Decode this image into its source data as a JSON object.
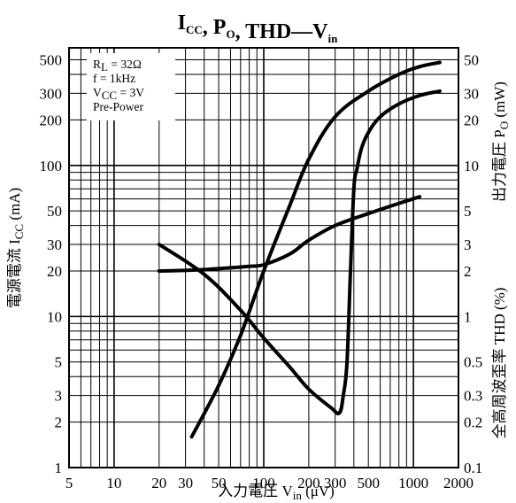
{
  "chart_data": {
    "type": "line",
    "title_parts": [
      {
        "text": "I",
        "sub": "CC"
      },
      {
        "text": ", P",
        "sub": "O"
      },
      {
        "text": ", THD—V",
        "sub": "in"
      }
    ],
    "xlabel": {
      "prefix": "入力電圧",
      "symbol": "V",
      "sub": "in",
      "unit": "(μV)"
    },
    "ylabel_left": {
      "prefix": "電源電流",
      "symbol": "I",
      "sub": "CC",
      "unit": "(mA)"
    },
    "ylabel_right_po": {
      "prefix": "出力電圧",
      "symbol": "P",
      "sub": "O",
      "unit": "(mW)"
    },
    "ylabel_right_thd": {
      "prefix": "全高周波歪率",
      "symbol": "THD",
      "unit": "(%)"
    },
    "conditions": [
      "R_L = 32Ω",
      "f = 1kHz",
      "V_CC = 3V",
      "Pre-Power"
    ],
    "x_scale": "log",
    "xlim": [
      5,
      2000
    ],
    "x_ticks": [
      "5",
      "10",
      "20",
      "30",
      "50",
      "100",
      "200",
      "300",
      "500",
      "1000",
      "2000"
    ],
    "y_left_scale": "log",
    "ylim_left": [
      1,
      600
    ],
    "y_left_ticks": [
      "1",
      "2",
      "3",
      "5",
      "10",
      "20",
      "30",
      "50",
      "100",
      "200",
      "300",
      "500"
    ],
    "y_right_ticks": [
      "0.1",
      "0.2",
      "0.3",
      "0.5",
      "1",
      "2",
      "3",
      "5",
      "10",
      "20",
      "30",
      "50"
    ],
    "grid": true,
    "series": [
      {
        "name": "ICC",
        "axis": "left",
        "x": [
          20,
          35,
          60,
          80,
          100,
          150,
          200,
          300,
          500,
          800,
          1100
        ],
        "y": [
          20,
          20.3,
          21,
          21.5,
          22,
          26,
          32,
          40,
          48,
          56,
          62
        ]
      },
      {
        "name": "PO",
        "axis": "left",
        "x": [
          33,
          50,
          70,
          100,
          150,
          200,
          300,
          500,
          800,
          1100,
          1500
        ],
        "y": [
          1.6,
          3.5,
          7.5,
          20,
          55,
          110,
          210,
          310,
          400,
          450,
          480
        ]
      },
      {
        "name": "THD",
        "axis": "left",
        "x": [
          20,
          40,
          70,
          100,
          150,
          200,
          280,
          320,
          340,
          360,
          380,
          400,
          420,
          450,
          500,
          600,
          800,
          1100,
          1500
        ],
        "y": [
          30,
          19,
          11,
          7.2,
          4.6,
          3.3,
          2.5,
          2.3,
          3,
          5,
          20,
          70,
          95,
          130,
          165,
          210,
          255,
          290,
          310
        ]
      }
    ]
  }
}
